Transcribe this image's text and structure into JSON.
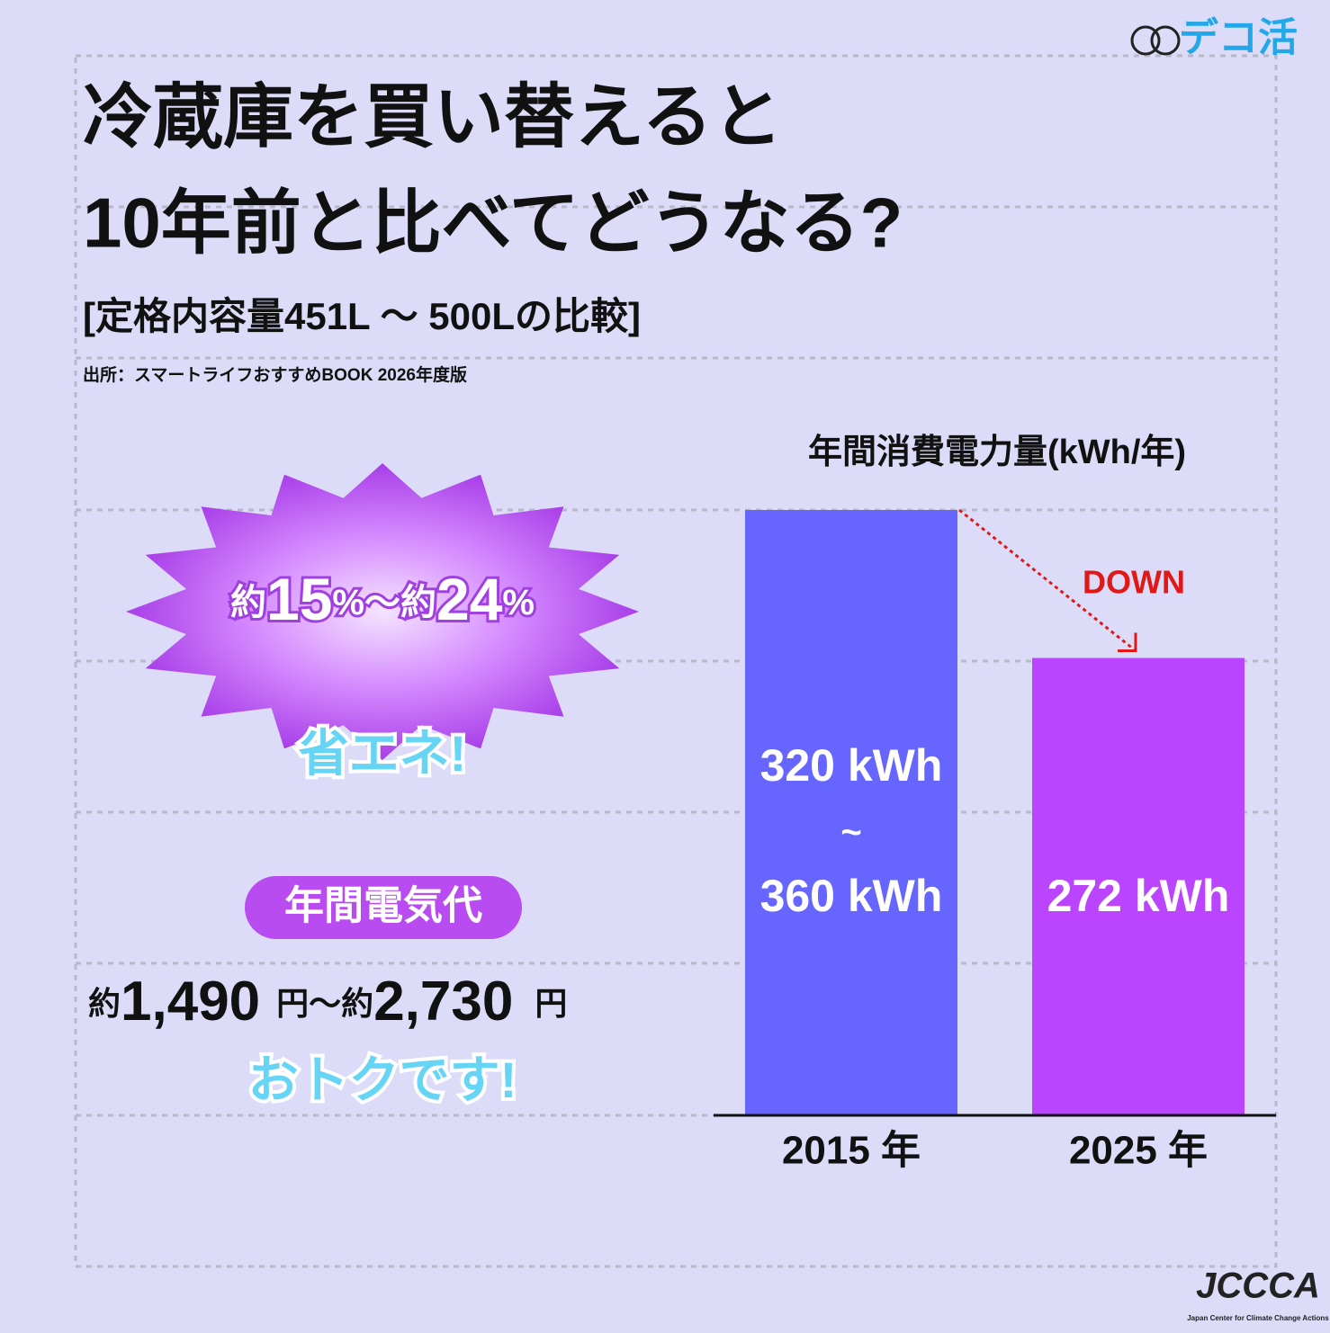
{
  "logo": "デコ活",
  "title_lines": [
    "冷蔵庫を買い替えると",
    "10年前と比べてどうなる?"
  ],
  "subtitle": "[定格内容量451L ～ 500Lの比較]",
  "source": "出所：スマートライフおすすめBOOK 2026年度版",
  "savings_parts": [
    "約",
    "15",
    "%～約",
    "24",
    "%"
  ],
  "savings_caption": "省エネ!",
  "cost_badge": "年間電気代",
  "cost_parts": [
    "約",
    "1,490",
    "円～約",
    "2,730",
    "円"
  ],
  "cost_caption": "おトクです!",
  "footer_logo": "JCCCA",
  "footer_text": "Japan Center for Climate Change Actions",
  "chart_data": {
    "type": "bar",
    "title": "年間消費電力量(kWh/年)",
    "categories": [
      "2015 年",
      "2025 年"
    ],
    "values": [
      360,
      272
    ],
    "value_labels": [
      "360 kWh",
      "272 kWh"
    ],
    "low_values": [
      320,
      null
    ],
    "low_value_labels": [
      "320 kWh",
      null
    ],
    "range_sign": "~",
    "colors": [
      "#6666ff",
      "#bb44ff"
    ],
    "annotation": "DOWN"
  }
}
